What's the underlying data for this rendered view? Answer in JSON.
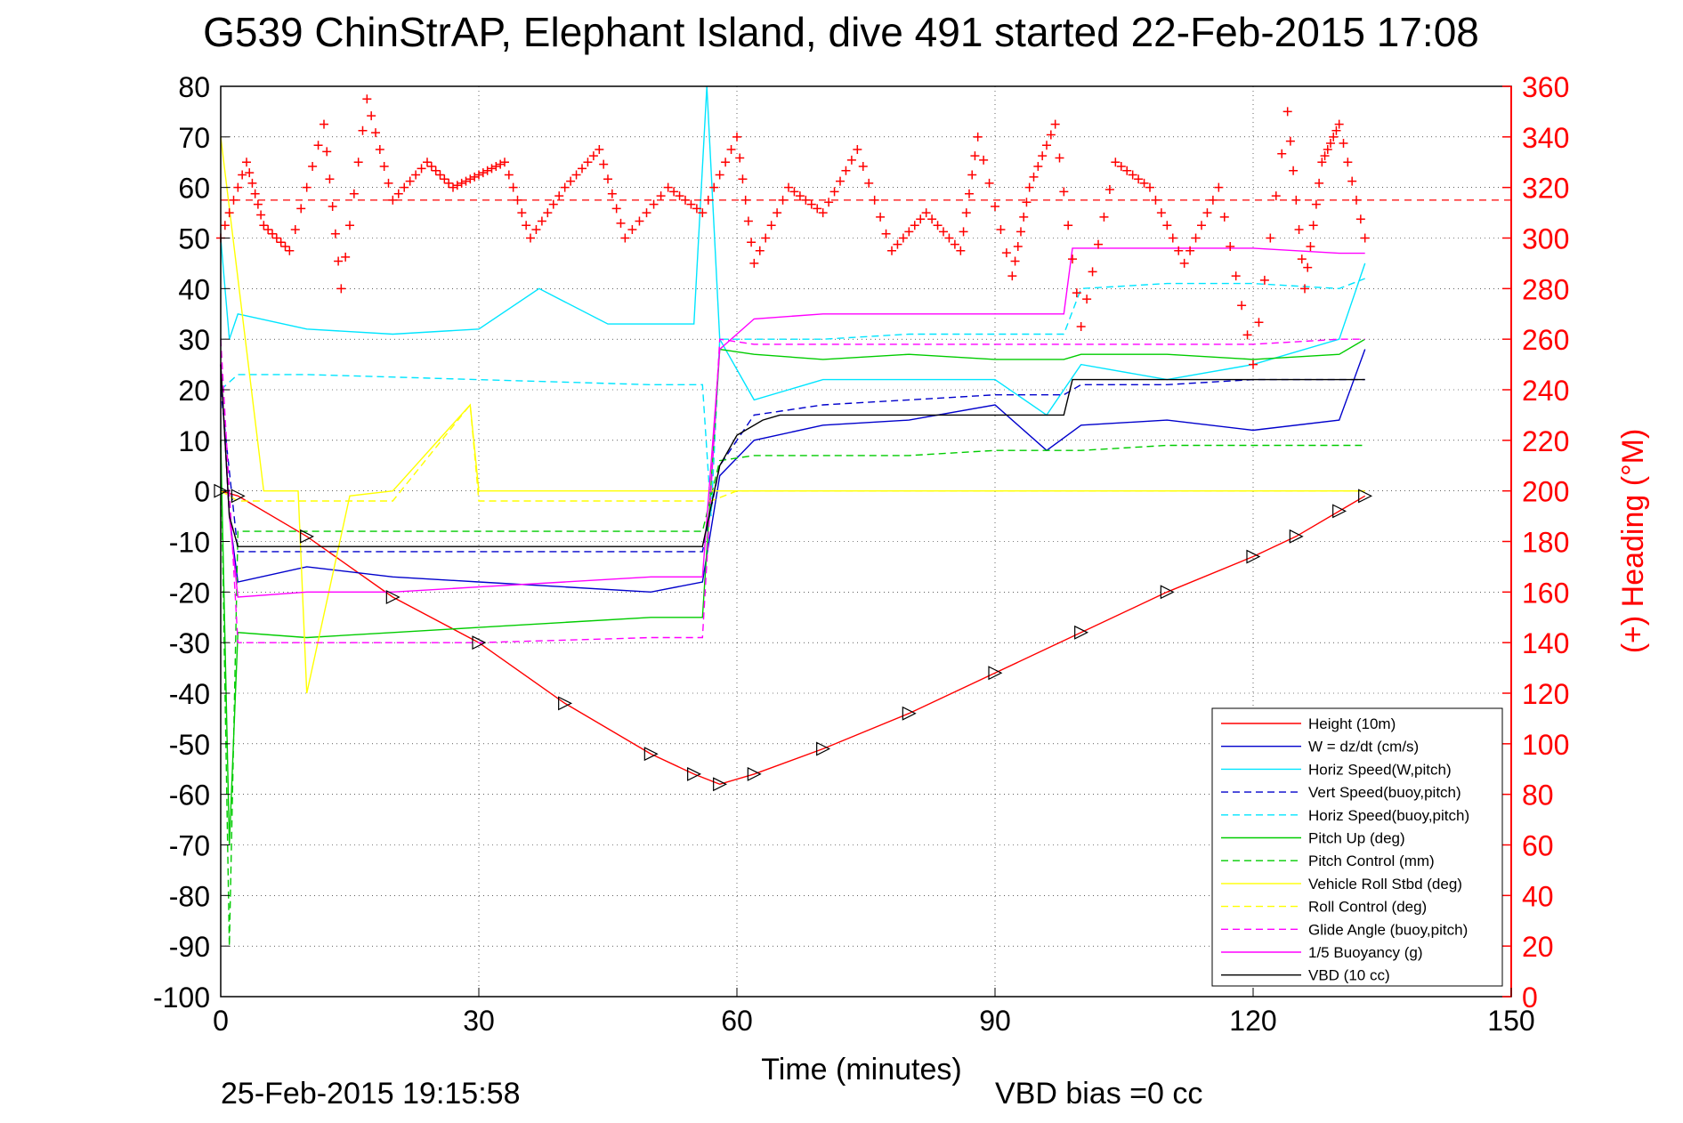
{
  "chart_data": {
    "type": "line",
    "title": "G539 ChinStrAP, Elephant Island, dive 491 started 22-Feb-2015 17:08",
    "xlabel": "Time (minutes)",
    "ylabel_right": "(+) Heading (°M)",
    "footer_left": "25-Feb-2015 19:15:58",
    "footer_right": "VBD bias =0 cc",
    "xlim": [
      0,
      150
    ],
    "ylim": [
      -100,
      80
    ],
    "ylim_right": [
      0,
      360
    ],
    "x_ticks": [
      "0",
      "30",
      "60",
      "90",
      "120",
      "150"
    ],
    "y_ticks": [
      "80",
      "70",
      "60",
      "50",
      "40",
      "30",
      "20",
      "10",
      "0",
      "-10",
      "-20",
      "-30",
      "-40",
      "-50",
      "-60",
      "-70",
      "-80",
      "-90",
      "-100"
    ],
    "y_ticks_right": [
      "360",
      "340",
      "320",
      "300",
      "280",
      "260",
      "240",
      "220",
      "200",
      "180",
      "160",
      "140",
      "120",
      "100",
      "80",
      "60",
      "40",
      "20",
      "0"
    ],
    "grid": true,
    "legend_position": "bottom-right",
    "heading_reference_line": 315,
    "series": [
      {
        "name": "Height (10m)",
        "color": "#ff0000",
        "style": "solid",
        "x": [
          0,
          2,
          10,
          20,
          30,
          40,
          50,
          55,
          58,
          62,
          70,
          80,
          90,
          100,
          110,
          120,
          125,
          130,
          133
        ],
        "y": [
          0,
          -1,
          -9,
          -21,
          -30,
          -42,
          -52,
          -56,
          -58,
          -56,
          -51,
          -44,
          -36,
          -28,
          -20,
          -13,
          -9,
          -4,
          -1
        ]
      },
      {
        "name": "W = dz/dt (cm/s)",
        "color": "#0000cc",
        "style": "solid",
        "x": [
          0,
          1,
          2,
          10,
          20,
          30,
          40,
          50,
          56,
          58,
          62,
          70,
          80,
          90,
          96,
          100,
          110,
          120,
          130,
          133
        ],
        "y": [
          25,
          -5,
          -18,
          -15,
          -17,
          -18,
          -19,
          -20,
          -18,
          3,
          10,
          13,
          14,
          17,
          8,
          13,
          14,
          12,
          14,
          28
        ]
      },
      {
        "name": "Horiz Speed(W,pitch)",
        "color": "#00e5ff",
        "style": "solid",
        "x": [
          0,
          1,
          2,
          10,
          20,
          30,
          37,
          45,
          55,
          56.5,
          58,
          62,
          70,
          80,
          90,
          96,
          100,
          110,
          120,
          130,
          133
        ],
        "y": [
          50,
          30,
          35,
          32,
          31,
          32,
          40,
          33,
          33,
          80,
          30,
          18,
          22,
          22,
          22,
          15,
          25,
          22,
          25,
          30,
          45
        ]
      },
      {
        "name": "Vert Speed(buoy,pitch)",
        "color": "#0000cc",
        "style": "dashed",
        "x": [
          0,
          2,
          10,
          30,
          50,
          56,
          58,
          62,
          70,
          80,
          90,
          98,
          100,
          110,
          120,
          130,
          133
        ],
        "y": [
          20,
          -12,
          -12,
          -12,
          -12,
          -12,
          5,
          15,
          17,
          18,
          19,
          19,
          21,
          21,
          22,
          22,
          22
        ]
      },
      {
        "name": "Horiz Speed(buoy,pitch)",
        "color": "#00e5ff",
        "style": "dashed",
        "x": [
          0,
          2,
          10,
          30,
          50,
          56,
          57,
          58,
          62,
          70,
          80,
          90,
          98,
          100,
          110,
          120,
          130,
          133
        ],
        "y": [
          20,
          23,
          23,
          22,
          21,
          21,
          -5,
          30,
          30,
          30,
          31,
          31,
          31,
          40,
          41,
          41,
          40,
          42
        ]
      },
      {
        "name": "Pitch Up (deg)",
        "color": "#00cc00",
        "style": "solid",
        "x": [
          0,
          1,
          2,
          10,
          20,
          30,
          40,
          50,
          56,
          58,
          62,
          70,
          80,
          90,
          98,
          100,
          110,
          120,
          130,
          133
        ],
        "y": [
          10,
          -70,
          -28,
          -29,
          -28,
          -27,
          -26,
          -25,
          -25,
          28,
          27,
          26,
          27,
          26,
          26,
          27,
          27,
          26,
          27,
          30
        ]
      },
      {
        "name": "Pitch Control (mm)",
        "color": "#00cc00",
        "style": "dashed",
        "x": [
          0,
          1,
          2,
          10,
          30,
          50,
          56,
          58,
          62,
          70,
          80,
          90,
          98,
          100,
          110,
          120,
          130,
          133
        ],
        "y": [
          10,
          -90,
          -8,
          -8,
          -8,
          -8,
          -8,
          6,
          7,
          7,
          7,
          8,
          8,
          8,
          9,
          9,
          9,
          9
        ]
      },
      {
        "name": "Vehicle Roll Stbd (deg)",
        "color": "#ffff00",
        "style": "solid",
        "x": [
          0,
          5,
          9,
          10,
          15,
          20,
          29,
          30,
          35,
          45,
          55,
          58,
          70,
          80,
          88,
          95,
          100,
          110,
          120,
          125,
          130,
          133
        ],
        "y": [
          70,
          0,
          0,
          -40,
          -1,
          0,
          17,
          0,
          0,
          0,
          0,
          0,
          0,
          0,
          0,
          0,
          0,
          0,
          0,
          0,
          0,
          0
        ]
      },
      {
        "name": "Roll Control (deg)",
        "color": "#ffff00",
        "style": "dashed",
        "x": [
          0,
          2,
          10,
          20,
          29,
          30,
          40,
          50,
          57,
          60,
          70,
          80,
          90,
          98,
          100,
          110,
          120,
          130,
          133
        ],
        "y": [
          0,
          -2,
          -2,
          -2,
          17,
          -2,
          -2,
          -2,
          -2,
          0,
          0,
          0,
          0,
          0,
          0,
          0,
          0,
          0,
          0
        ]
      },
      {
        "name": "Glide Angle (buoy,pitch)",
        "color": "#ff00ff",
        "style": "dashed",
        "x": [
          0,
          2,
          10,
          30,
          50,
          56,
          58,
          62,
          70,
          80,
          90,
          98,
          100,
          110,
          120,
          130,
          133
        ],
        "y": [
          30,
          -30,
          -30,
          -30,
          -29,
          -29,
          30,
          29,
          29,
          29,
          29,
          29,
          29,
          29,
          29,
          30,
          30
        ]
      },
      {
        "name": "1/5 Buoyancy (g)",
        "color": "#ff00ff",
        "style": "solid",
        "x": [
          0,
          1,
          2,
          10,
          20,
          30,
          40,
          50,
          56,
          58,
          62,
          70,
          80,
          90,
          98,
          99,
          110,
          120,
          130,
          133
        ],
        "y": [
          25,
          -5,
          -21,
          -20,
          -20,
          -19,
          -18,
          -17,
          -17,
          28,
          34,
          35,
          35,
          35,
          35,
          48,
          48,
          48,
          47,
          47
        ]
      },
      {
        "name": "VBD (10 cc)",
        "color": "#000000",
        "style": "solid",
        "x": [
          0,
          1,
          2,
          10,
          30,
          56,
          58,
          60,
          63,
          65,
          80,
          98,
          99,
          120,
          133
        ],
        "y": [
          25,
          -5,
          -11,
          -11,
          -11,
          -11,
          5,
          11,
          14,
          15,
          15,
          15,
          22,
          22,
          22
        ]
      },
      {
        "name": "Heading",
        "color": "#ff0000",
        "style": "markers",
        "axis": "right",
        "x": [
          0,
          3,
          5,
          8,
          12,
          14,
          17,
          20,
          24,
          27,
          30,
          33,
          36,
          40,
          44,
          47,
          52,
          56,
          60,
          62,
          66,
          70,
          74,
          78,
          82,
          86,
          88,
          92,
          94,
          97,
          100,
          104,
          108,
          112,
          116,
          120,
          124,
          126,
          128,
          130,
          133
        ],
        "y": [
          300,
          330,
          305,
          295,
          345,
          280,
          355,
          315,
          330,
          320,
          325,
          330,
          300,
          320,
          335,
          300,
          320,
          310,
          340,
          290,
          320,
          310,
          335,
          295,
          310,
          295,
          340,
          285,
          320,
          345,
          265,
          330,
          320,
          290,
          320,
          250,
          350,
          280,
          330,
          345,
          300
        ]
      }
    ]
  }
}
